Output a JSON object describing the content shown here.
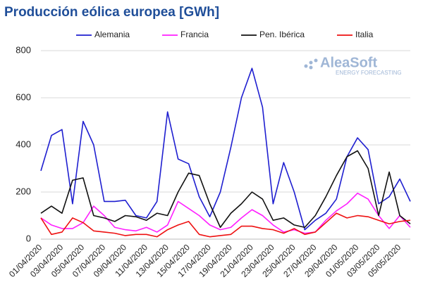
{
  "chart_data": {
    "type": "line",
    "title": "Producción eólica europea [GWh]",
    "logo": {
      "name": "AleaSoft",
      "tagline": "ENERGY FORECASTING"
    },
    "categories": [
      "01/04/2020",
      null,
      "03/04/2020",
      null,
      "05/04/2020",
      null,
      "07/04/2020",
      null,
      "09/04/2020",
      null,
      "11/04/2020",
      null,
      "13/04/2020",
      null,
      "15/04/2020",
      null,
      "17/04/2020",
      null,
      "19/04/2020",
      null,
      "21/04/2020",
      null,
      "23/04/2020",
      null,
      "25/04/2020",
      null,
      "27/04/2020",
      null,
      "29/04/2020",
      null,
      "01/05/2020",
      null,
      "03/05/2020",
      null,
      "05/05/2020",
      null
    ],
    "series": [
      {
        "name": "Alemania",
        "color": "#1f1fd0",
        "values": [
          290,
          440,
          465,
          150,
          500,
          400,
          160,
          160,
          165,
          100,
          90,
          160,
          540,
          340,
          320,
          180,
          95,
          200,
          390,
          600,
          725,
          560,
          150,
          325,
          200,
          40,
          80,
          110,
          170,
          350,
          430,
          380,
          150,
          180,
          255,
          160
        ]
      },
      {
        "name": "Francia",
        "color": "#ff1fff",
        "values": [
          90,
          60,
          45,
          45,
          70,
          140,
          100,
          50,
          40,
          35,
          50,
          30,
          60,
          160,
          130,
          100,
          60,
          40,
          50,
          90,
          125,
          100,
          60,
          30,
          40,
          25,
          30,
          80,
          120,
          150,
          195,
          170,
          100,
          45,
          100,
          50
        ]
      },
      {
        "name": "Pen. Ibérica",
        "color": "#111111",
        "values": [
          110,
          140,
          110,
          250,
          260,
          100,
          90,
          75,
          100,
          95,
          80,
          110,
          100,
          200,
          280,
          270,
          150,
          50,
          110,
          150,
          200,
          170,
          80,
          90,
          60,
          50,
          100,
          180,
          270,
          350,
          375,
          300,
          100,
          285,
          100,
          65
        ]
      },
      {
        "name": "Italia",
        "color": "#ee1111",
        "values": [
          90,
          20,
          30,
          90,
          70,
          35,
          30,
          25,
          15,
          20,
          20,
          10,
          40,
          60,
          75,
          20,
          10,
          15,
          20,
          55,
          55,
          45,
          40,
          25,
          45,
          20,
          30,
          70,
          110,
          90,
          100,
          95,
          80,
          65,
          75,
          80
        ]
      }
    ],
    "ylim": [
      0,
      800
    ],
    "yticks": [
      0,
      200,
      400,
      600,
      800
    ],
    "grid": true
  }
}
